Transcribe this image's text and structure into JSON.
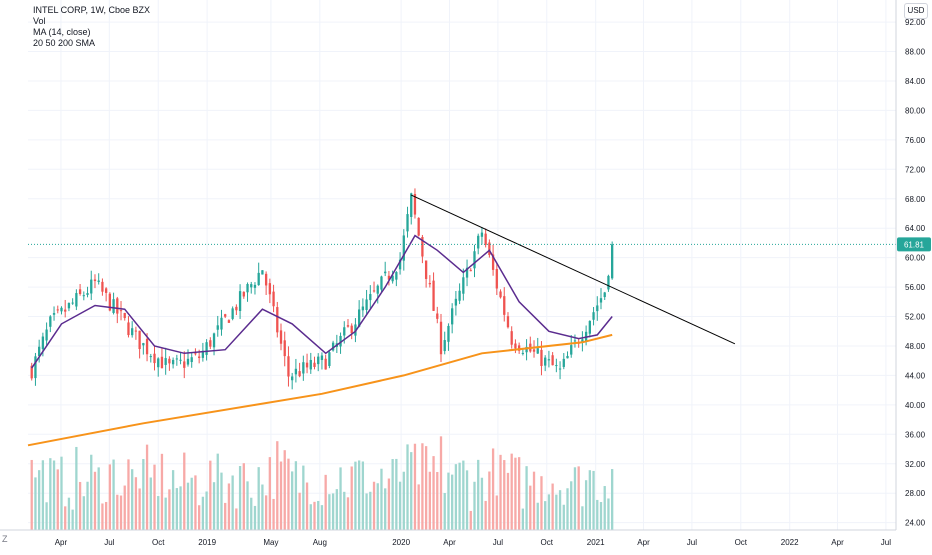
{
  "legend": {
    "title": "INTEL CORP, 1W, Cboe BZX",
    "vol": "Vol",
    "ma": "MA (14, close)",
    "sma": "20 50 200 SMA"
  },
  "currency_button": "USD",
  "zoom_button": "Z",
  "colors": {
    "up": "#26a69a",
    "down": "#ef5350",
    "ma14": "#5b2c8f",
    "sma200": "#f7931a",
    "vol_up": "#9fd6cf",
    "vol_down": "#f7a9a7",
    "trendline": "#000000",
    "last_price": "#26a69a"
  },
  "chart_data": {
    "type": "candlestick",
    "title": "INTEL CORP, 1W, Cboe BZX",
    "y_axis": {
      "ticks": [
        24,
        28,
        32,
        36,
        40,
        44,
        48,
        52,
        56,
        60,
        64,
        68,
        72,
        76,
        80,
        84,
        88,
        92
      ],
      "tick_labels": [
        "24.00",
        "28.00",
        "32.00",
        "36.00",
        "40.00",
        "44.00",
        "48.00",
        "52.00",
        "56.00",
        "60.00",
        "64.00",
        "68.00",
        "72.00",
        "76.00",
        "80.00",
        "84.00",
        "88.00",
        "92.00"
      ],
      "range": [
        23,
        95
      ]
    },
    "x_axis": {
      "tick_labels": [
        "Apr",
        "Jul",
        "Oct",
        "2019",
        "May",
        "Aug",
        "2020",
        "Apr",
        "Jul",
        "Oct",
        "2021",
        "Apr",
        "Jul",
        "Oct",
        "2022",
        "Apr",
        "Jul"
      ],
      "tick_dates": [
        "2018-04-01",
        "2018-07-01",
        "2018-10-01",
        "2019-01-01",
        "2019-05-01",
        "2019-08-01",
        "2020-01-01",
        "2020-04-01",
        "2020-07-01",
        "2020-10-01",
        "2021-01-01",
        "2021-04-01",
        "2021-07-01",
        "2021-10-01",
        "2022-01-01",
        "2022-04-01",
        "2022-07-01"
      ],
      "range": [
        "2018-01-29",
        "2022-07-20"
      ]
    },
    "last_price": 61.81,
    "last_price_label": "61.81",
    "key_closes": [
      {
        "date": "2018-02-05",
        "close": 44.8
      },
      {
        "date": "2018-03-12",
        "close": 51.0
      },
      {
        "date": "2018-06-04",
        "close": 56.5
      },
      {
        "date": "2018-08-27",
        "close": 48.5
      },
      {
        "date": "2018-10-22",
        "close": 45.0
      },
      {
        "date": "2018-12-17",
        "close": 46.5
      },
      {
        "date": "2019-04-15",
        "close": 58.5
      },
      {
        "date": "2019-06-03",
        "close": 44.0
      },
      {
        "date": "2019-08-12",
        "close": 46.0
      },
      {
        "date": "2019-12-30",
        "close": 59.8
      },
      {
        "date": "2020-01-20",
        "close": 68.0
      },
      {
        "date": "2020-03-16",
        "close": 48.0
      },
      {
        "date": "2020-06-01",
        "close": 63.5
      },
      {
        "date": "2020-07-27",
        "close": 49.0
      },
      {
        "date": "2020-10-26",
        "close": 44.5
      },
      {
        "date": "2021-01-18",
        "close": 55.5
      },
      {
        "date": "2021-02-01",
        "close": 61.81
      }
    ],
    "ma14": [
      {
        "date": "2018-02-05",
        "value": 45.0
      },
      {
        "date": "2018-04-02",
        "value": 51.0
      },
      {
        "date": "2018-06-04",
        "value": 53.5
      },
      {
        "date": "2018-07-30",
        "value": 53.0
      },
      {
        "date": "2018-09-24",
        "value": 48.0
      },
      {
        "date": "2018-11-19",
        "value": 47.0
      },
      {
        "date": "2019-02-04",
        "value": 47.5
      },
      {
        "date": "2019-04-15",
        "value": 53.0
      },
      {
        "date": "2019-06-10",
        "value": 51.0
      },
      {
        "date": "2019-08-12",
        "value": 47.0
      },
      {
        "date": "2019-10-07",
        "value": 50.0
      },
      {
        "date": "2019-12-02",
        "value": 56.0
      },
      {
        "date": "2020-01-27",
        "value": 63.0
      },
      {
        "date": "2020-03-09",
        "value": 61.0
      },
      {
        "date": "2020-04-27",
        "value": 58.0
      },
      {
        "date": "2020-06-15",
        "value": 61.0
      },
      {
        "date": "2020-08-10",
        "value": 54.0
      },
      {
        "date": "2020-10-05",
        "value": 50.0
      },
      {
        "date": "2020-11-30",
        "value": 49.0
      },
      {
        "date": "2021-01-04",
        "value": 49.5
      },
      {
        "date": "2021-02-01",
        "value": 52.0
      }
    ],
    "sma200": [
      {
        "date": "2018-01-29",
        "value": 34.5
      },
      {
        "date": "2018-09-03",
        "value": 37.5
      },
      {
        "date": "2019-04-01",
        "value": 40.0
      },
      {
        "date": "2019-08-05",
        "value": 41.5
      },
      {
        "date": "2020-01-06",
        "value": 44.0
      },
      {
        "date": "2020-06-01",
        "value": 47.0
      },
      {
        "date": "2020-12-07",
        "value": 48.5
      },
      {
        "date": "2021-02-01",
        "value": 49.5
      }
    ],
    "trendline": [
      {
        "date": "2020-01-20",
        "value": 68.5
      },
      {
        "date": "2021-09-20",
        "value": 48.3
      }
    ],
    "volume": {
      "note": "Volume histogram rendered at bottom of price pane",
      "scale": "relative"
    }
  }
}
